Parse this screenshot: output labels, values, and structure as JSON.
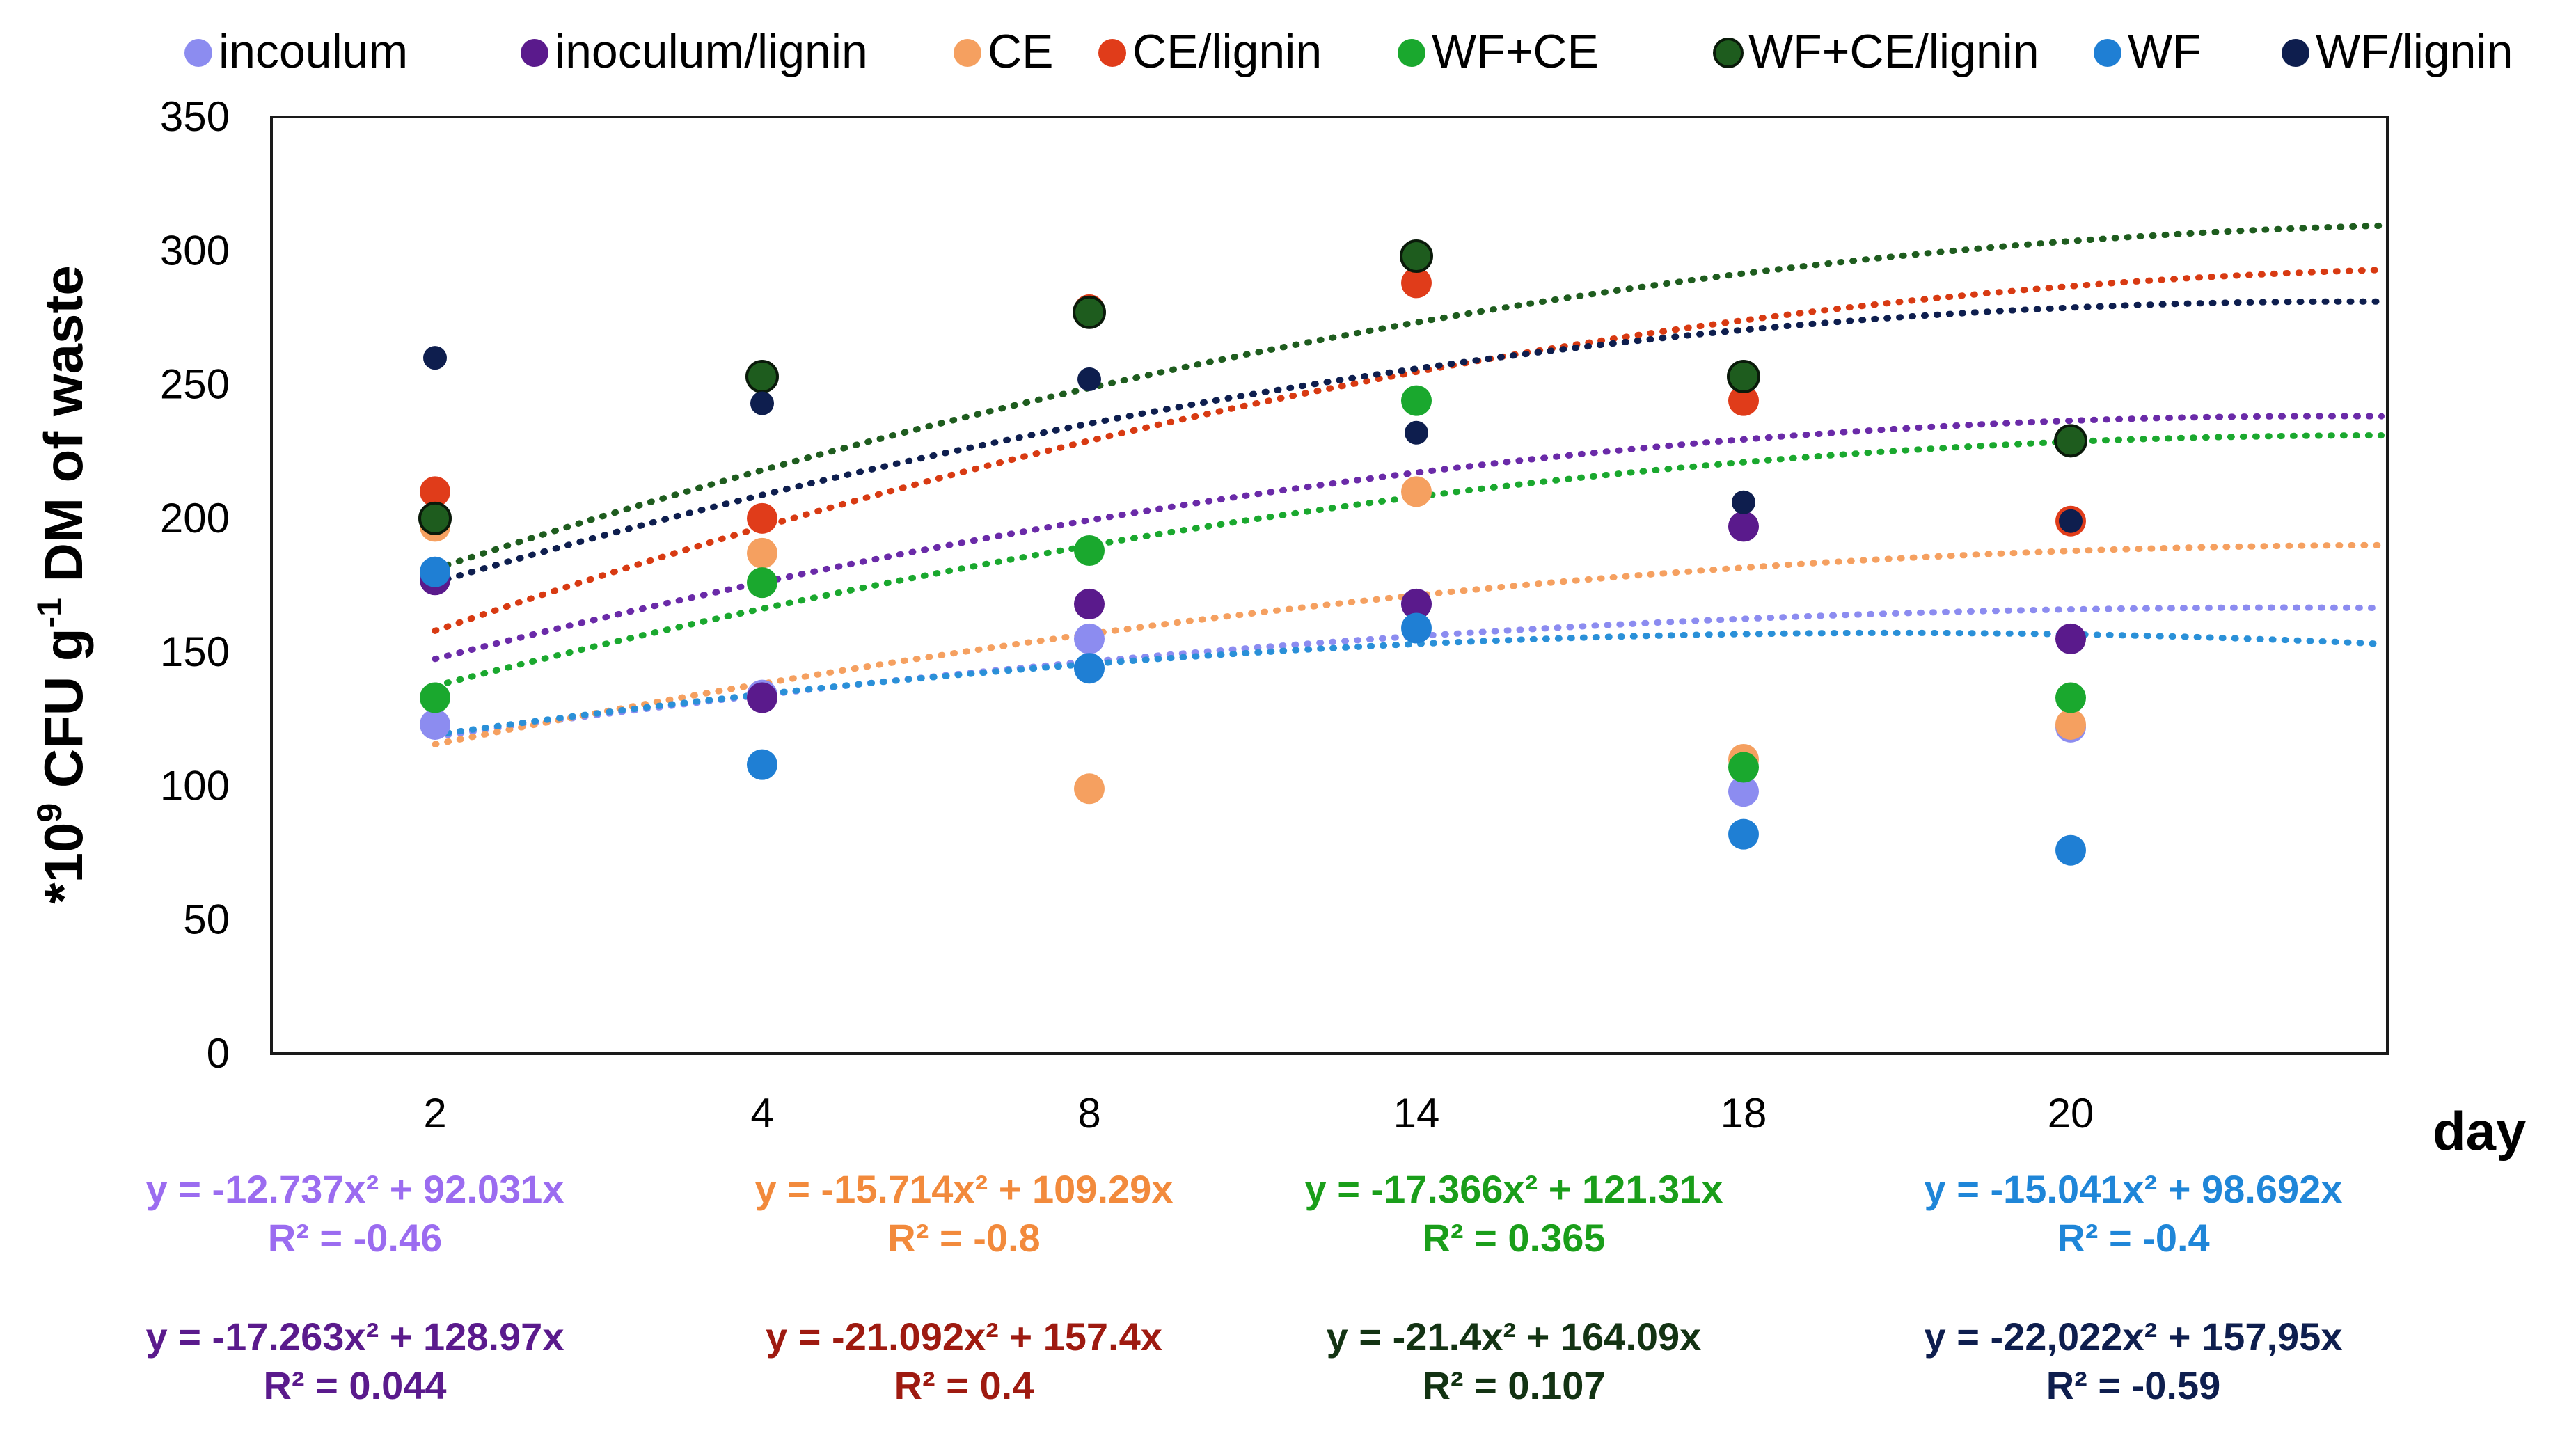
{
  "chart_data": {
    "type": "scatter",
    "title": "",
    "xlabel": "day",
    "ylabel_parts": {
      "base": "*10",
      "sup1": "9",
      "mid": " CFU g",
      "sup2": "-1",
      "tail": " DM of waste"
    },
    "categories": [
      "2",
      "4",
      "8",
      "14",
      "18",
      "20"
    ],
    "ylim": [
      0,
      350
    ],
    "yticks": [
      0,
      50,
      100,
      150,
      200,
      250,
      300,
      350
    ],
    "grid": false,
    "legend_position": "top",
    "series": [
      {
        "name": "incoulum",
        "color": "#8c8cf0",
        "trend_color": "#8c8cf0",
        "values": [
          123,
          134,
          155,
          168,
          98,
          122
        ],
        "trend": {
          "a": -1.5,
          "b": 17,
          "c": 118.5
        },
        "equation": "y = -12.737x² + 92.031x",
        "r2": "R² = -0.46",
        "eq_color": "#9b6cf0",
        "slot": 0
      },
      {
        "name": "inoculum/lignin",
        "color": "#5a1a8c",
        "trend_color": "#6a2aa8",
        "values": [
          177,
          133,
          168,
          168,
          197,
          155
        ],
        "trend": {
          "a": -2.7,
          "b": 31.3,
          "c": 147.5
        },
        "equation": "y = -17.263x² + 128.97x",
        "r2": "R² = 0.044",
        "eq_color": "#5a1a8c",
        "slot": 4
      },
      {
        "name": "CE",
        "color": "#f5a060",
        "trend_color": "#f5a060",
        "values": [
          197,
          187,
          99,
          210,
          110,
          123
        ],
        "trend": {
          "a": -2.05,
          "b": 24.7,
          "c": 115.6
        },
        "equation": "y = -15.714x² + 109.29x",
        "r2": "R² = -0.8",
        "eq_color": "#f28a3c",
        "slot": 1
      },
      {
        "name": "CE/lignin",
        "color": "#e03c1a",
        "trend_color": "#d83a12",
        "values": [
          210,
          200,
          278,
          288,
          244,
          199
        ],
        "trend": {
          "a": -3.25,
          "b": 42,
          "c": 158
        },
        "equation": "y = -21.092x² + 157.4x",
        "r2": "R² = 0.4",
        "eq_color": "#9e1a10",
        "slot": 5
      },
      {
        "name": "WF+CE",
        "color": "#1aa82e",
        "trend_color": "#1aa82e",
        "values": [
          133,
          176,
          188,
          244,
          107,
          133
        ],
        "trend": {
          "a": -2.65,
          "b": 31.5,
          "c": 137.4
        },
        "equation": "y = -17.366x² + 121.31x",
        "r2": "R² = 0.365",
        "eq_color": "#1a9e1a",
        "slot": 2
      },
      {
        "name": "WF+CE/lignin",
        "color": "#1e5c1e",
        "trend_color": "#1e5c1e",
        "values": [
          200,
          253,
          277,
          298,
          253,
          229
        ],
        "trend": {
          "a": -3.1,
          "b": 40,
          "c": 181.1
        },
        "equation": "y = -21.4x² + 164.09x",
        "r2": "R² = 0.107",
        "eq_color": "#133313",
        "slot": 6
      },
      {
        "name": "WF",
        "color": "#1f7fd4",
        "trend_color": "#2a90d8",
        "values": [
          180,
          108,
          144,
          159,
          82,
          76
        ],
        "trend": {
          "a": -1.9,
          "b": 17,
          "c": 119.2
        },
        "equation": "y = -15.041x² + 98.692x",
        "r2": "R² = -0.4",
        "eq_color": "#1f86d8",
        "slot": 3
      },
      {
        "name": "WF/lignin",
        "color": "#0e1e4e",
        "trend_color": "#0e1e4e",
        "values": [
          260,
          243,
          252,
          232,
          206,
          199
        ],
        "trend": {
          "a": -3.05,
          "b": 35.8,
          "c": 176
        },
        "equation": "y = -22,022x² + 157,95x",
        "r2": "R² = -0.59",
        "eq_color": "#0e1e4e",
        "slot": 7
      }
    ]
  }
}
